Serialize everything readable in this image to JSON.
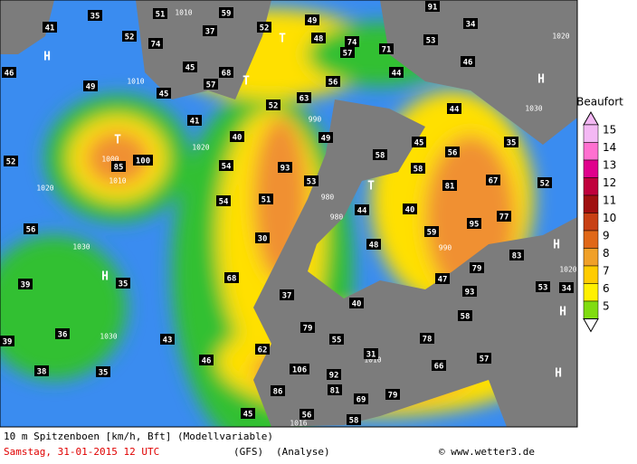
{
  "map": {
    "gusts": [
      35,
      51,
      59,
      49,
      91,
      34,
      41,
      52,
      74,
      37,
      52,
      48,
      74,
      57,
      71,
      53,
      46,
      45,
      68,
      57,
      44,
      49,
      46,
      45,
      56,
      63,
      52,
      44,
      41,
      40,
      49,
      45,
      35,
      52,
      85,
      100,
      54,
      93,
      58,
      58,
      56,
      53,
      81,
      67,
      52,
      54,
      51,
      44,
      40,
      95,
      77,
      56,
      30,
      48,
      59,
      83,
      68,
      79,
      47,
      53,
      34,
      39,
      35,
      37,
      40,
      93,
      58,
      79,
      36,
      39,
      43,
      55,
      78,
      62,
      31,
      57,
      38,
      35,
      46,
      106,
      92,
      66,
      86,
      81,
      69,
      79,
      45,
      56,
      58
    ],
    "isobar_labels": [
      1010,
      1020,
      1010,
      1020,
      1010,
      1000,
      990,
      980,
      980,
      990,
      1020,
      1030,
      1030,
      1030,
      1020,
      1016,
      1010
    ],
    "pressure_systems": [
      "H",
      "H",
      "T",
      "T",
      "T",
      "T",
      "H",
      "H",
      "H",
      "H"
    ]
  },
  "legend": {
    "title": "Beaufort",
    "items": [
      {
        "label": 15,
        "color": "#f4b8f4"
      },
      {
        "label": 14,
        "color": "#ff70d0"
      },
      {
        "label": 13,
        "color": "#e0008c"
      },
      {
        "label": 12,
        "color": "#c0003c"
      },
      {
        "label": 11,
        "color": "#a01010"
      },
      {
        "label": 10,
        "color": "#c84014"
      },
      {
        "label": 9,
        "color": "#e06818"
      },
      {
        "label": 8,
        "color": "#f0a028"
      },
      {
        "label": 7,
        "color": "#ffcc00"
      },
      {
        "label": 6,
        "color": "#fff000"
      },
      {
        "label": 5,
        "color": "#80dc10"
      }
    ]
  },
  "footer": {
    "line1": "10 m Spitzenboen [km/h, Bft] (Modellvariable)",
    "date": "Samstag, 31-01-2015   12 UTC",
    "model": "(GFS)",
    "mode": "(Analyse)",
    "credit": "© www.wetter3.de"
  }
}
